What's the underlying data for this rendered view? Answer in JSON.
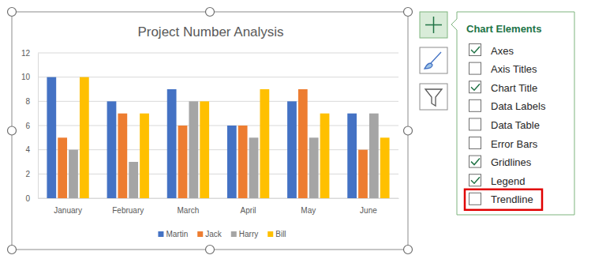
{
  "chart_data": {
    "type": "bar",
    "title": "Project Number Analysis",
    "categories": [
      "January",
      "February",
      "March",
      "April",
      "May",
      "June"
    ],
    "series": [
      {
        "name": "Martin",
        "color": "#4472c4",
        "values": [
          10,
          8,
          9,
          6,
          8,
          7
        ]
      },
      {
        "name": "Jack",
        "color": "#ed7d31",
        "values": [
          5,
          7,
          6,
          6,
          9,
          4
        ]
      },
      {
        "name": "Harry",
        "color": "#a5a5a5",
        "values": [
          4,
          3,
          8,
          5,
          5,
          7
        ]
      },
      {
        "name": "Bill",
        "color": "#ffc000",
        "values": [
          10,
          7,
          8,
          9,
          7,
          5
        ]
      }
    ],
    "ylim": [
      0,
      12
    ],
    "yticks": [
      0,
      2,
      4,
      6,
      8,
      10,
      12
    ],
    "grid": true,
    "legend": "bottom"
  },
  "chart_elements_panel": {
    "title": "Chart Elements",
    "items": [
      {
        "label": "Axes",
        "checked": true
      },
      {
        "label": "Axis Titles",
        "checked": false
      },
      {
        "label": "Chart Title",
        "checked": true
      },
      {
        "label": "Data Labels",
        "checked": false
      },
      {
        "label": "Data Table",
        "checked": false
      },
      {
        "label": "Error Bars",
        "checked": false
      },
      {
        "label": "Gridlines",
        "checked": true
      },
      {
        "label": "Legend",
        "checked": true
      },
      {
        "label": "Trendline",
        "checked": false,
        "highlighted": true
      }
    ]
  }
}
